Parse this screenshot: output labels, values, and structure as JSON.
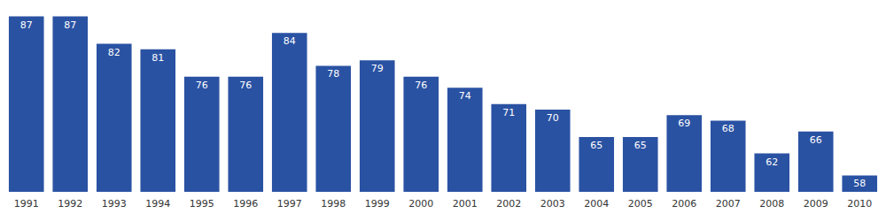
{
  "chart_data": {
    "type": "bar",
    "categories": [
      "1991",
      "1992",
      "1993",
      "1994",
      "1995",
      "1996",
      "1997",
      "1998",
      "1999",
      "2000",
      "2001",
      "2002",
      "2003",
      "2004",
      "2005",
      "2006",
      "2007",
      "2008",
      "2009",
      "2010"
    ],
    "values": [
      87,
      87,
      82,
      81,
      76,
      76,
      84,
      78,
      79,
      76,
      74,
      71,
      70,
      65,
      65,
      69,
      68,
      62,
      66,
      58
    ],
    "color": "#2a52a3",
    "ylim": [
      55,
      90
    ],
    "yticks": [
      55,
      90
    ],
    "grid": false,
    "data_labels": true,
    "tick_labels": "x"
  }
}
